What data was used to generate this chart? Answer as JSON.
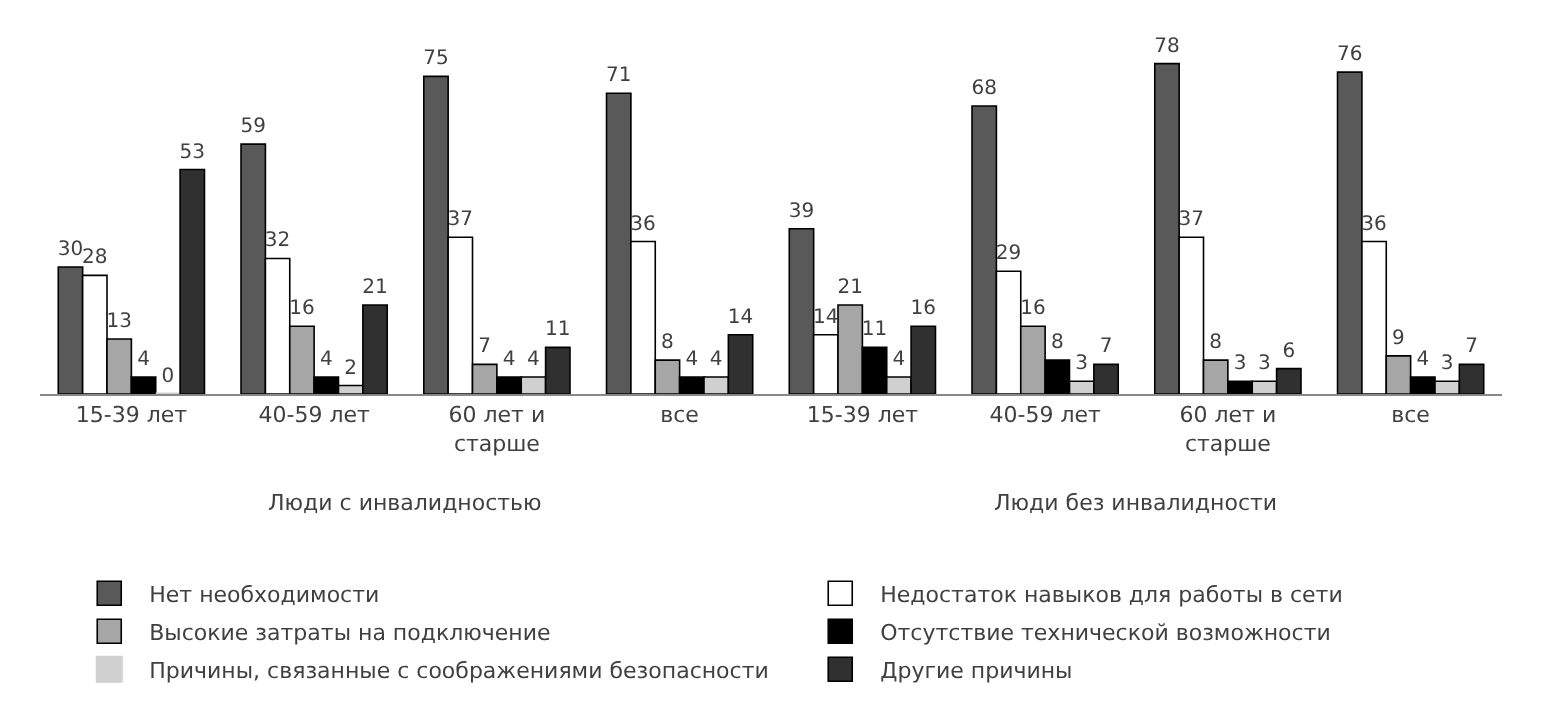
{
  "chart_data": {
    "type": "bar",
    "categories": [
      "15-39 лет",
      "40-59 лет",
      "60 лет и старше",
      "все",
      "15-39 лет",
      "40-59 лет",
      "60 лет и старше",
      "все"
    ],
    "series": [
      {
        "name": "Нет необходимости",
        "color": "#595959",
        "values": [
          30,
          59,
          75,
          71,
          39,
          68,
          78,
          76
        ]
      },
      {
        "name": "Недостаток навыков для работы в сети",
        "color": "#ffffff",
        "values": [
          28,
          32,
          37,
          36,
          14,
          29,
          37,
          36
        ]
      },
      {
        "name": "Высокие затраты на подключение",
        "color": "#a6a6a6",
        "values": [
          13,
          16,
          7,
          8,
          21,
          16,
          8,
          9
        ]
      },
      {
        "name": "Отсутствие технической возможности",
        "color": "#000000",
        "values": [
          4,
          4,
          4,
          4,
          11,
          8,
          3,
          4
        ]
      },
      {
        "name": "Причины, связанные с соображениями безопасности",
        "color": "#d0d0d0",
        "values": [
          0,
          2,
          4,
          4,
          4,
          3,
          3,
          3
        ]
      },
      {
        "name": "Другие причины",
        "color": "#303030",
        "values": [
          53,
          21,
          11,
          14,
          16,
          7,
          6,
          7
        ]
      }
    ],
    "annotations": [
      "Люди с инвалидностью",
      "Люди без инвалидности"
    ],
    "data_labels": true,
    "legend": "bottom"
  }
}
